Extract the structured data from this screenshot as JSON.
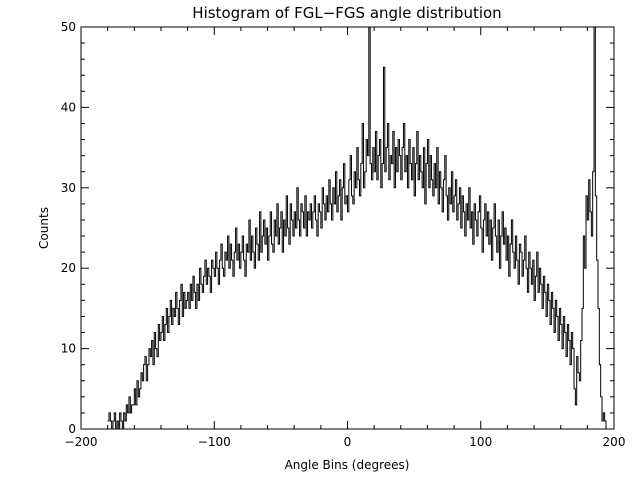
{
  "chart_data": {
    "type": "line",
    "title": "Histogram of FGL−FGS angle distribution",
    "xlabel": "Angle Bins (degrees)",
    "ylabel": "Counts",
    "xlim": [
      -200,
      200
    ],
    "ylim": [
      0,
      50
    ],
    "xticks": [
      -200,
      -100,
      0,
      100,
      200
    ],
    "xtick_labels": [
      "−200",
      "−100",
      "0",
      "100",
      "200"
    ],
    "yticks": [
      0,
      10,
      20,
      30,
      40,
      50
    ],
    "ytick_labels": [
      "0",
      "10",
      "20",
      "30",
      "40",
      "50"
    ],
    "xminor_step": 20,
    "yminor_step": 2,
    "grid": false,
    "series": [
      {
        "name": "counts",
        "x_start": -180,
        "bin_width": 1,
        "values": [
          1,
          2,
          1,
          0,
          1,
          2,
          0,
          1,
          0,
          2,
          1,
          0,
          2,
          1,
          3,
          2,
          4,
          2,
          3,
          3,
          5,
          3,
          6,
          4,
          5,
          7,
          6,
          8,
          9,
          6,
          8,
          10,
          9,
          11,
          8,
          12,
          10,
          9,
          13,
          11,
          12,
          14,
          11,
          13,
          15,
          12,
          14,
          16,
          13,
          15,
          14,
          17,
          15,
          13,
          16,
          18,
          14,
          17,
          15,
          16,
          17,
          15,
          18,
          16,
          19,
          17,
          15,
          18,
          16,
          20,
          18,
          17,
          19,
          21,
          18,
          20,
          19,
          17,
          21,
          20,
          19,
          22,
          20,
          18,
          21,
          23,
          20,
          19,
          22,
          21,
          24,
          20,
          23,
          21,
          19,
          22,
          25,
          21,
          23,
          20,
          22,
          24,
          21,
          19,
          23,
          22,
          26,
          21,
          24,
          22,
          20,
          25,
          23,
          21,
          27,
          22,
          24,
          26,
          23,
          25,
          21,
          24,
          27,
          23,
          22,
          26,
          24,
          28,
          23,
          25,
          27,
          22,
          26,
          24,
          29,
          25,
          23,
          28,
          26,
          24,
          27,
          25,
          30,
          26,
          24,
          28,
          27,
          25,
          29,
          24,
          27,
          26,
          28,
          25,
          27,
          29,
          26,
          24,
          28,
          27,
          25,
          30,
          28,
          26,
          29,
          27,
          31,
          28,
          26,
          30,
          28,
          32,
          27,
          29,
          31,
          26,
          30,
          33,
          28,
          29,
          27,
          31,
          34,
          29,
          28,
          32,
          30,
          35,
          31,
          29,
          33,
          38,
          30,
          32,
          36,
          34,
          50,
          33,
          31,
          35,
          32,
          37,
          31,
          34,
          36,
          30,
          33,
          45,
          32,
          35,
          38,
          31,
          34,
          33,
          37,
          30,
          35,
          32,
          36,
          34,
          31,
          35,
          38,
          32,
          34,
          30,
          36,
          33,
          31,
          35,
          29,
          33,
          37,
          31,
          34,
          32,
          30,
          35,
          28,
          33,
          36,
          30,
          34,
          31,
          29,
          33,
          30,
          35,
          28,
          32,
          30,
          27,
          31,
          34,
          29,
          26,
          30,
          28,
          32,
          27,
          29,
          31,
          26,
          28,
          30,
          25,
          29,
          27,
          24,
          28,
          26,
          30,
          25,
          27,
          23,
          28,
          26,
          24,
          27,
          29,
          25,
          22,
          26,
          28,
          24,
          27,
          23,
          26,
          21,
          25,
          28,
          24,
          22,
          26,
          20,
          24,
          27,
          23,
          25,
          21,
          24,
          19,
          23,
          26,
          22,
          20,
          24,
          21,
          18,
          23,
          22,
          19,
          21,
          24,
          20,
          17,
          22,
          20,
          18,
          21,
          16,
          19,
          22,
          17,
          20,
          18,
          15,
          19,
          17,
          14,
          18,
          16,
          13,
          17,
          15,
          12,
          16,
          14,
          11,
          15,
          13,
          10,
          14,
          12,
          9,
          13,
          11,
          8,
          12,
          10,
          5,
          3,
          9,
          7,
          6,
          11,
          15,
          24,
          20,
          29,
          26,
          31,
          27,
          24,
          32,
          50,
          29,
          21,
          15,
          8,
          4,
          1,
          2,
          1,
          0
        ]
      }
    ]
  }
}
